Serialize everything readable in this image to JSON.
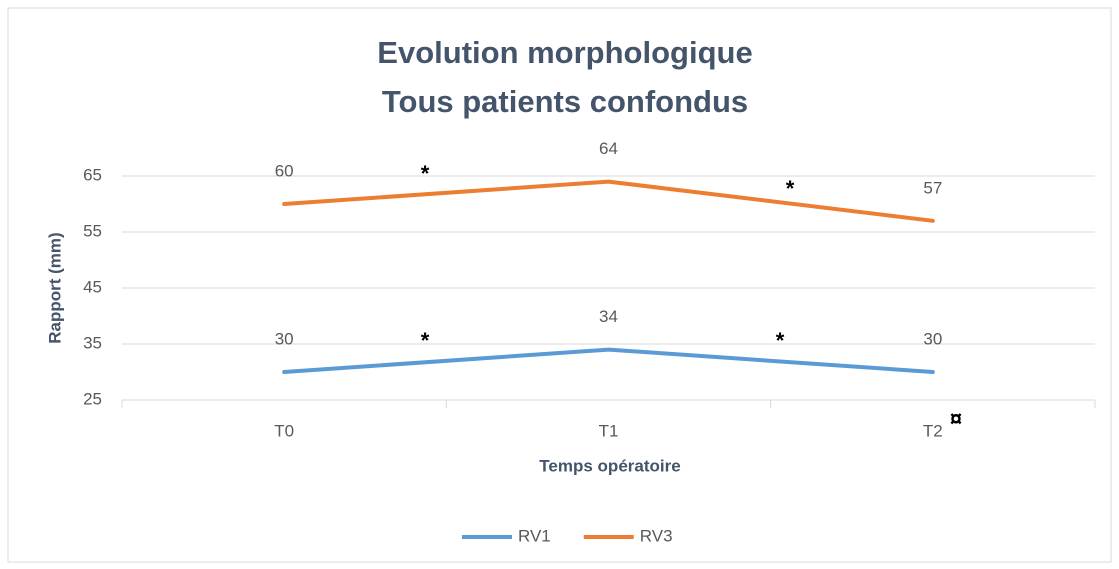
{
  "chart_data": {
    "type": "line",
    "title": [
      "Evolution morphologique",
      "Tous patients confondus"
    ],
    "x_label": "Temps opératoire",
    "y_label": "Rapport (mm)",
    "categories": [
      "T0",
      "T1",
      "T2"
    ],
    "series": [
      {
        "name": "RV1",
        "color": "#5b9bd5",
        "values": [
          30,
          34,
          30
        ]
      },
      {
        "name": "RV3",
        "color": "#ed7d31",
        "values": [
          60,
          64,
          57
        ]
      }
    ],
    "ylim": [
      25,
      65
    ],
    "yticks": [
      25,
      35,
      45,
      55,
      65
    ],
    "grid": true,
    "legend": "bottom",
    "annotations": [
      "*",
      "*",
      "*",
      "*",
      "¤"
    ]
  }
}
